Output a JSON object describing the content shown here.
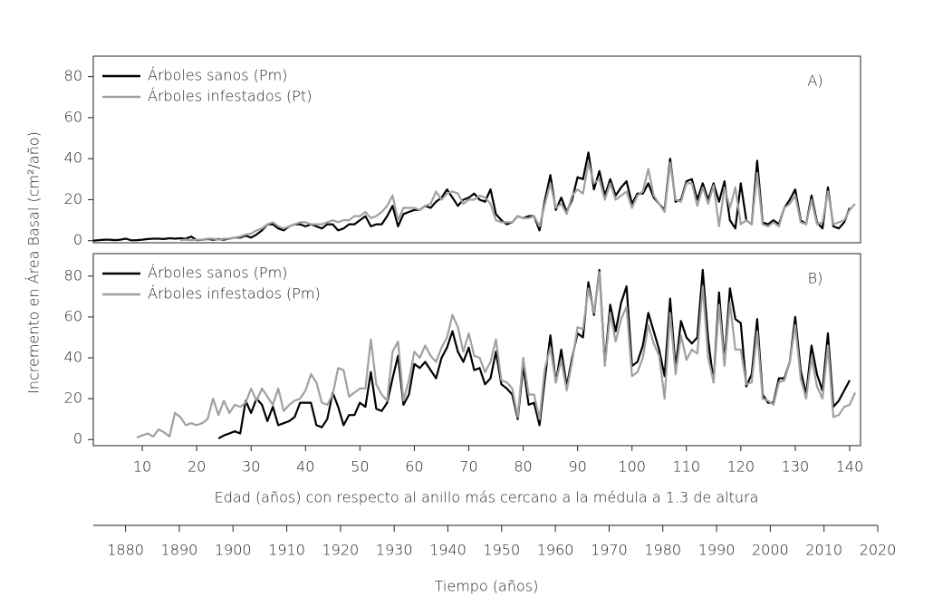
{
  "y_label": "Incremento en Área Basal (cm²/año)",
  "chart_data": [
    {
      "type": "line",
      "annotation": "A)",
      "legend": "upper left",
      "x": [
        1,
        2,
        3,
        4,
        5,
        6,
        7,
        8,
        9,
        10,
        11,
        12,
        13,
        14,
        15,
        16,
        17,
        18,
        19,
        20,
        21,
        22,
        23,
        24,
        25,
        26,
        27,
        28,
        29,
        30,
        31,
        32,
        33,
        34,
        35,
        36,
        37,
        38,
        39,
        40,
        41,
        42,
        43,
        44,
        45,
        46,
        47,
        48,
        49,
        50,
        51,
        52,
        53,
        54,
        55,
        56,
        57,
        58,
        59,
        60,
        61,
        62,
        63,
        64,
        65,
        66,
        67,
        68,
        69,
        70,
        71,
        72,
        73,
        74,
        75,
        76,
        77,
        78,
        79,
        80,
        81,
        82,
        83,
        84,
        85,
        86,
        87,
        88,
        89,
        90,
        91,
        92,
        93,
        94,
        95,
        96,
        97,
        98,
        99,
        100,
        101,
        102,
        103,
        104,
        105,
        106,
        107,
        108,
        109,
        110,
        111,
        112,
        113,
        114,
        115,
        116,
        117,
        118,
        119,
        120,
        121,
        122,
        123,
        124,
        125,
        126,
        127,
        128,
        129,
        130,
        131,
        132,
        133,
        134,
        135,
        136,
        137,
        138,
        139,
        140,
        141
      ],
      "xlim": [
        1,
        142
      ],
      "ylim": [
        -1,
        90
      ],
      "yticks": [
        0,
        20,
        40,
        60,
        80
      ],
      "series": [
        {
          "name": "Árboles sanos (Pm)",
          "color": "#000000",
          "values": [
            0,
            0.3,
            0.5,
            0.5,
            0.3,
            0.5,
            1,
            0.2,
            0.3,
            0.5,
            0.8,
            1,
            1,
            0.8,
            1.2,
            1,
            1.2,
            1,
            2,
            0.3,
            0.5,
            0.8,
            0.5,
            0.8,
            0.5,
            1,
            1.5,
            1.5,
            2.5,
            1.5,
            3,
            5,
            8,
            8,
            6,
            5,
            7,
            8,
            8,
            7,
            8,
            7,
            6,
            8,
            8,
            5,
            6,
            8,
            8,
            10,
            12,
            7,
            8,
            8,
            12,
            17,
            7,
            13,
            14,
            15,
            15,
            17,
            16,
            19,
            21,
            25,
            21,
            17,
            20,
            21,
            23,
            20,
            19,
            25,
            13,
            10,
            8,
            9,
            12,
            11,
            12,
            12,
            5,
            20,
            32,
            15,
            21,
            14,
            20,
            31,
            30,
            43,
            25,
            34,
            22,
            30,
            22,
            26,
            29,
            18,
            23,
            23,
            28,
            21,
            18,
            15,
            40,
            19,
            20,
            29,
            30,
            20,
            28,
            20,
            28,
            19,
            29,
            10,
            6,
            28,
            10,
            8,
            39,
            9,
            8,
            10,
            8,
            16,
            20,
            25,
            10,
            8,
            22,
            9,
            6,
            26,
            7,
            6,
            9,
            16,
            null
          ]
        },
        {
          "name": "Árboles infestados (Pt)",
          "color": "#a0a0a0",
          "values": [
            null,
            null,
            null,
            null,
            null,
            null,
            null,
            null,
            null,
            null,
            null,
            null,
            null,
            null,
            null,
            null,
            0.3,
            0.5,
            0.3,
            0.5,
            0.5,
            1,
            1,
            0.5,
            1,
            1,
            1.5,
            2,
            3,
            3.5,
            5,
            6,
            8,
            9,
            7,
            6,
            7,
            8,
            9,
            9,
            8,
            8,
            8,
            9,
            10,
            9,
            10,
            10,
            12,
            12,
            14,
            11,
            12,
            14,
            17,
            22,
            10,
            16,
            16,
            16,
            15,
            17,
            18,
            24,
            20,
            23,
            24,
            23,
            18,
            20,
            20,
            22,
            21,
            18,
            10,
            9,
            9,
            9,
            12,
            11,
            11,
            12,
            7,
            18,
            28,
            16,
            18,
            13,
            22,
            25,
            23,
            38,
            28,
            30,
            20,
            28,
            20,
            22,
            24,
            16,
            22,
            24,
            35,
            22,
            18,
            14,
            38,
            20,
            19,
            28,
            28,
            17,
            26,
            18,
            27,
            7,
            26,
            16,
            26,
            8,
            10,
            8,
            33,
            8,
            7,
            9,
            7,
            16,
            18,
            22,
            9,
            8,
            20,
            8,
            9,
            24,
            8,
            9,
            10,
            15,
            18
          ]
        }
      ]
    },
    {
      "type": "line",
      "annotation": "B)",
      "legend": "upper left",
      "x_label": "Edad (años) con respecto al anillo más cercano a la médula a 1.3 de altura",
      "x": [
        1,
        2,
        3,
        4,
        5,
        6,
        7,
        8,
        9,
        10,
        11,
        12,
        13,
        14,
        15,
        16,
        17,
        18,
        19,
        20,
        21,
        22,
        23,
        24,
        25,
        26,
        27,
        28,
        29,
        30,
        31,
        32,
        33,
        34,
        35,
        36,
        37,
        38,
        39,
        40,
        41,
        42,
        43,
        44,
        45,
        46,
        47,
        48,
        49,
        50,
        51,
        52,
        53,
        54,
        55,
        56,
        57,
        58,
        59,
        60,
        61,
        62,
        63,
        64,
        65,
        66,
        67,
        68,
        69,
        70,
        71,
        72,
        73,
        74,
        75,
        76,
        77,
        78,
        79,
        80,
        81,
        82,
        83,
        84,
        85,
        86,
        87,
        88,
        89,
        90,
        91,
        92,
        93,
        94,
        95,
        96,
        97,
        98,
        99,
        100,
        101,
        102,
        103,
        104,
        105,
        106,
        107,
        108,
        109,
        110,
        111,
        112,
        113,
        114,
        115,
        116,
        117,
        118,
        119,
        120,
        121,
        122,
        123,
        124,
        125,
        126,
        127,
        128,
        129,
        130,
        131,
        132,
        133,
        134,
        135,
        136,
        137,
        138,
        139,
        140,
        141
      ],
      "xlim": [
        1,
        142
      ],
      "xticks": [
        10,
        20,
        30,
        40,
        50,
        60,
        70,
        80,
        90,
        100,
        110,
        120,
        130,
        140
      ],
      "ylim": [
        -3,
        91
      ],
      "yticks": [
        0,
        20,
        40,
        60,
        80
      ],
      "series": [
        {
          "name": "Árboles sanos (Pm)",
          "color": "#000000",
          "values": [
            null,
            null,
            null,
            null,
            null,
            null,
            null,
            null,
            null,
            null,
            null,
            null,
            null,
            null,
            null,
            null,
            null,
            null,
            null,
            null,
            null,
            null,
            null,
            0.5,
            2,
            3,
            4,
            3,
            19,
            13,
            20,
            17,
            9,
            16,
            7,
            8,
            9,
            11,
            18,
            18,
            18,
            7,
            6,
            10,
            23,
            16,
            7,
            12,
            12,
            18,
            16,
            33,
            15,
            14,
            18,
            30,
            41,
            17,
            22,
            37,
            35,
            38,
            34,
            30,
            40,
            45,
            53,
            43,
            38,
            45,
            34,
            35,
            27,
            30,
            43,
            27,
            25,
            22,
            10,
            36,
            17,
            18,
            7,
            30,
            51,
            28,
            44,
            26,
            40,
            52,
            50,
            77,
            61,
            83,
            37,
            66,
            53,
            67,
            75,
            36,
            38,
            46,
            62,
            53,
            44,
            31,
            69,
            35,
            58,
            50,
            47,
            50,
            83,
            49,
            28,
            72,
            38,
            74,
            59,
            57,
            26,
            32,
            59,
            22,
            18,
            18,
            30,
            30,
            38,
            60,
            34,
            22,
            46,
            32,
            24,
            52,
            16,
            19,
            24,
            29,
            null
          ]
        },
        {
          "name": "Árboles infestados (Pm)",
          "color": "#a0a0a0",
          "values": [
            null,
            null,
            null,
            null,
            null,
            null,
            null,
            null,
            1,
            2,
            3,
            1.5,
            5,
            3.5,
            1.5,
            13,
            11,
            7,
            8,
            7,
            8,
            10,
            20,
            12,
            19,
            13,
            17,
            16,
            18,
            25,
            19,
            25,
            21,
            17,
            25,
            14,
            17,
            19,
            20,
            24,
            32,
            28,
            18,
            17,
            22,
            35,
            34,
            21,
            23,
            25,
            25,
            49,
            27,
            22,
            19,
            43,
            48,
            19,
            29,
            43,
            40,
            46,
            41,
            38,
            45,
            50,
            61,
            55,
            43,
            52,
            41,
            40,
            33,
            38,
            49,
            29,
            28,
            25,
            11,
            40,
            22,
            22,
            10,
            35,
            45,
            28,
            39,
            24,
            38,
            55,
            54,
            74,
            62,
            82,
            36,
            62,
            48,
            59,
            65,
            31,
            33,
            40,
            56,
            47,
            41,
            20,
            62,
            32,
            51,
            39,
            44,
            42,
            75,
            40,
            28,
            66,
            36,
            67,
            44,
            44,
            27,
            28,
            53,
            20,
            19,
            17,
            28,
            29,
            38,
            56,
            30,
            20,
            40,
            26,
            20,
            46,
            11,
            12,
            16,
            17,
            23
          ]
        }
      ]
    }
  ],
  "time_axis": {
    "label": "Tiempo (años)",
    "xlim": [
      1874,
      2020
    ],
    "xticks": [
      1880,
      1890,
      1900,
      1910,
      1920,
      1930,
      1940,
      1950,
      1960,
      1970,
      1980,
      1990,
      2000,
      2010,
      2020
    ]
  }
}
